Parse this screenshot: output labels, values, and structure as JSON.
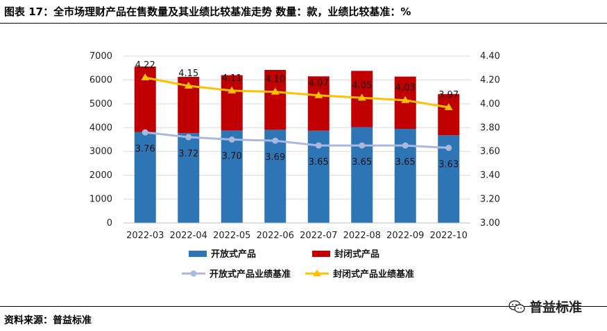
{
  "header": {
    "title": "图表 17：全市场理财产品在售数量及其业绩比较基准走势    数量：款，业绩比较基准：%"
  },
  "footer": {
    "source": "资料来源：普益标准",
    "watermark": "普益标准"
  },
  "colors": {
    "open_bar": "#2E75B6",
    "closed_bar": "#C00000",
    "open_line": "#A9B8DE",
    "closed_line": "#FFC000",
    "grid": "#D9D9D9"
  },
  "chart_data": {
    "type": "bar",
    "stacked": true,
    "categories": [
      "2022-03",
      "2022-04",
      "2022-05",
      "2022-06",
      "2022-07",
      "2022-08",
      "2022-09",
      "2022-10"
    ],
    "series": [
      {
        "name": "开放式产品",
        "type": "bar",
        "axis": "left",
        "values": [
          3820,
          3770,
          3880,
          3910,
          3870,
          4020,
          3950,
          3680
        ]
      },
      {
        "name": "封闭式产品",
        "type": "bar",
        "axis": "left",
        "values": [
          2740,
          2360,
          2320,
          2510,
          2280,
          2360,
          2190,
          1730
        ]
      },
      {
        "name": "开放式产品业绩基准",
        "type": "line",
        "axis": "right",
        "values": [
          3.76,
          3.72,
          3.7,
          3.69,
          3.65,
          3.65,
          3.65,
          3.63
        ]
      },
      {
        "name": "封闭式产品业绩基准",
        "type": "line",
        "axis": "right",
        "values": [
          4.22,
          4.15,
          4.11,
          4.1,
          4.07,
          4.05,
          4.03,
          3.97
        ]
      }
    ],
    "y_left": {
      "min": 0,
      "max": 7000,
      "step": 1000,
      "ticks": [
        "0",
        "1000",
        "2000",
        "3000",
        "4000",
        "5000",
        "6000",
        "7000"
      ]
    },
    "y_right": {
      "min": 3.0,
      "max": 4.4,
      "step": 0.2,
      "ticks": [
        "3.00",
        "3.20",
        "3.40",
        "3.60",
        "3.80",
        "4.00",
        "4.20",
        "4.40"
      ]
    },
    "data_labels_open": [
      "3.76",
      "3.72",
      "3.70",
      "3.69",
      "3.65",
      "3.65",
      "3.65",
      "3.63"
    ],
    "data_labels_closed": [
      "4.22",
      "4.15",
      "4.11",
      "4.10",
      "4.07",
      "4.05",
      "4.03",
      "3.97"
    ],
    "legend": [
      "开放式产品",
      "封闭式产品",
      "开放式产品业绩基准",
      "封闭式产品业绩基准"
    ],
    "legend_position": "bottom"
  }
}
